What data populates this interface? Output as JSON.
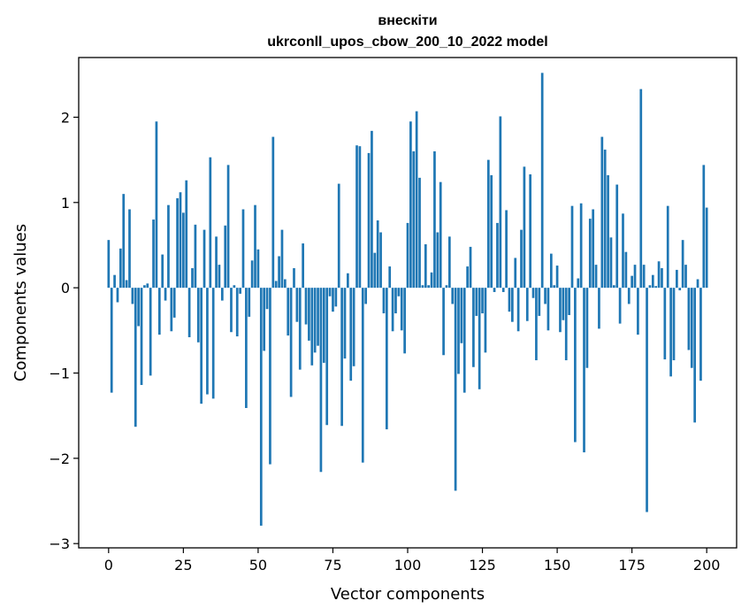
{
  "chart_data": {
    "type": "bar",
    "title": "внескіти",
    "subtitle": "ukrconll_upos_cbow_200_10_2022 model",
    "xlabel": "Vector components",
    "ylabel": "Components values",
    "xlim": [
      -10,
      210
    ],
    "ylim": [
      -3.05,
      2.7
    ],
    "xticks": [
      0,
      25,
      50,
      75,
      100,
      125,
      150,
      175,
      200
    ],
    "xtick_labels": [
      "0",
      "25",
      "50",
      "75",
      "100",
      "125",
      "150",
      "175",
      "200"
    ],
    "yticks": [
      -3,
      -2,
      -1,
      0,
      1,
      2
    ],
    "ytick_labels": [
      "−3",
      "−2",
      "−1",
      "0",
      "1",
      "2"
    ],
    "grid": false,
    "legend": "none",
    "bar_color": "#1f77b4",
    "series": [
      {
        "values": [
          0.56,
          -1.23,
          0.15,
          -0.17,
          0.46,
          1.1,
          0.09,
          0.92,
          -0.19,
          -1.63,
          -0.45,
          -1.14,
          0.03,
          0.05,
          -1.03,
          0.8,
          1.95,
          -0.55,
          0.39,
          -0.15,
          0.97,
          -0.51,
          -0.35,
          1.05,
          1.12,
          0.88,
          1.26,
          -0.58,
          0.23,
          0.74,
          -0.64,
          -1.36,
          0.68,
          -1.25,
          1.53,
          -1.3,
          0.6,
          0.27,
          -0.15,
          0.73,
          1.44,
          -0.52,
          0.03,
          -0.57,
          -0.07,
          0.92,
          -1.41,
          -0.34,
          0.32,
          0.97,
          0.45,
          -2.79,
          -0.74,
          -0.25,
          -2.07,
          1.77,
          0.08,
          0.37,
          0.68,
          0.1,
          -0.56,
          -1.28,
          0.23,
          -0.4,
          -0.96,
          0.52,
          -0.43,
          -0.62,
          -0.91,
          -0.76,
          -0.68,
          -2.16,
          -0.88,
          -1.61,
          -0.1,
          -0.28,
          -0.22,
          1.22,
          -1.62,
          -0.83,
          0.17,
          -1.09,
          -0.92,
          1.67,
          1.66,
          -2.05,
          -0.19,
          1.58,
          1.84,
          0.41,
          0.79,
          0.65,
          -0.3,
          -1.66,
          0.25,
          -0.51,
          -0.3,
          -0.1,
          -0.5,
          -0.77,
          0.76,
          1.95,
          1.6,
          2.07,
          1.29,
          0.03,
          0.51,
          0.03,
          0.18,
          1.6,
          0.65,
          1.24,
          -0.79,
          0.03,
          0.6,
          -0.19,
          -2.38,
          -1.01,
          -0.65,
          -1.23,
          0.25,
          0.48,
          -0.93,
          -0.33,
          -1.19,
          -0.3,
          -0.76,
          1.5,
          1.32,
          -0.05,
          0.76,
          2.01,
          -0.05,
          0.91,
          -0.28,
          -0.4,
          0.35,
          -0.51,
          0.68,
          1.42,
          -0.39,
          1.33,
          -0.12,
          -0.85,
          -0.33,
          2.52,
          -0.19,
          -0.5,
          0.4,
          0.03,
          0.26,
          -0.52,
          -0.38,
          -0.85,
          -0.32,
          0.96,
          -1.81,
          0.11,
          0.99,
          -1.93,
          -0.94,
          0.81,
          0.92,
          0.27,
          -0.48,
          1.77,
          1.62,
          1.32,
          0.59,
          0.03,
          1.21,
          -0.42,
          0.87,
          0.42,
          -0.19,
          0.14,
          0.27,
          -0.55,
          2.33,
          0.27,
          -2.63,
          0.03,
          0.15,
          0.02,
          0.31,
          0.23,
          -0.84,
          0.96,
          -1.04,
          -0.85,
          0.21,
          -0.03,
          0.56,
          0.27,
          -0.73,
          -0.94,
          -1.58,
          0.1,
          -1.09,
          1.44,
          0.94
        ]
      }
    ]
  }
}
